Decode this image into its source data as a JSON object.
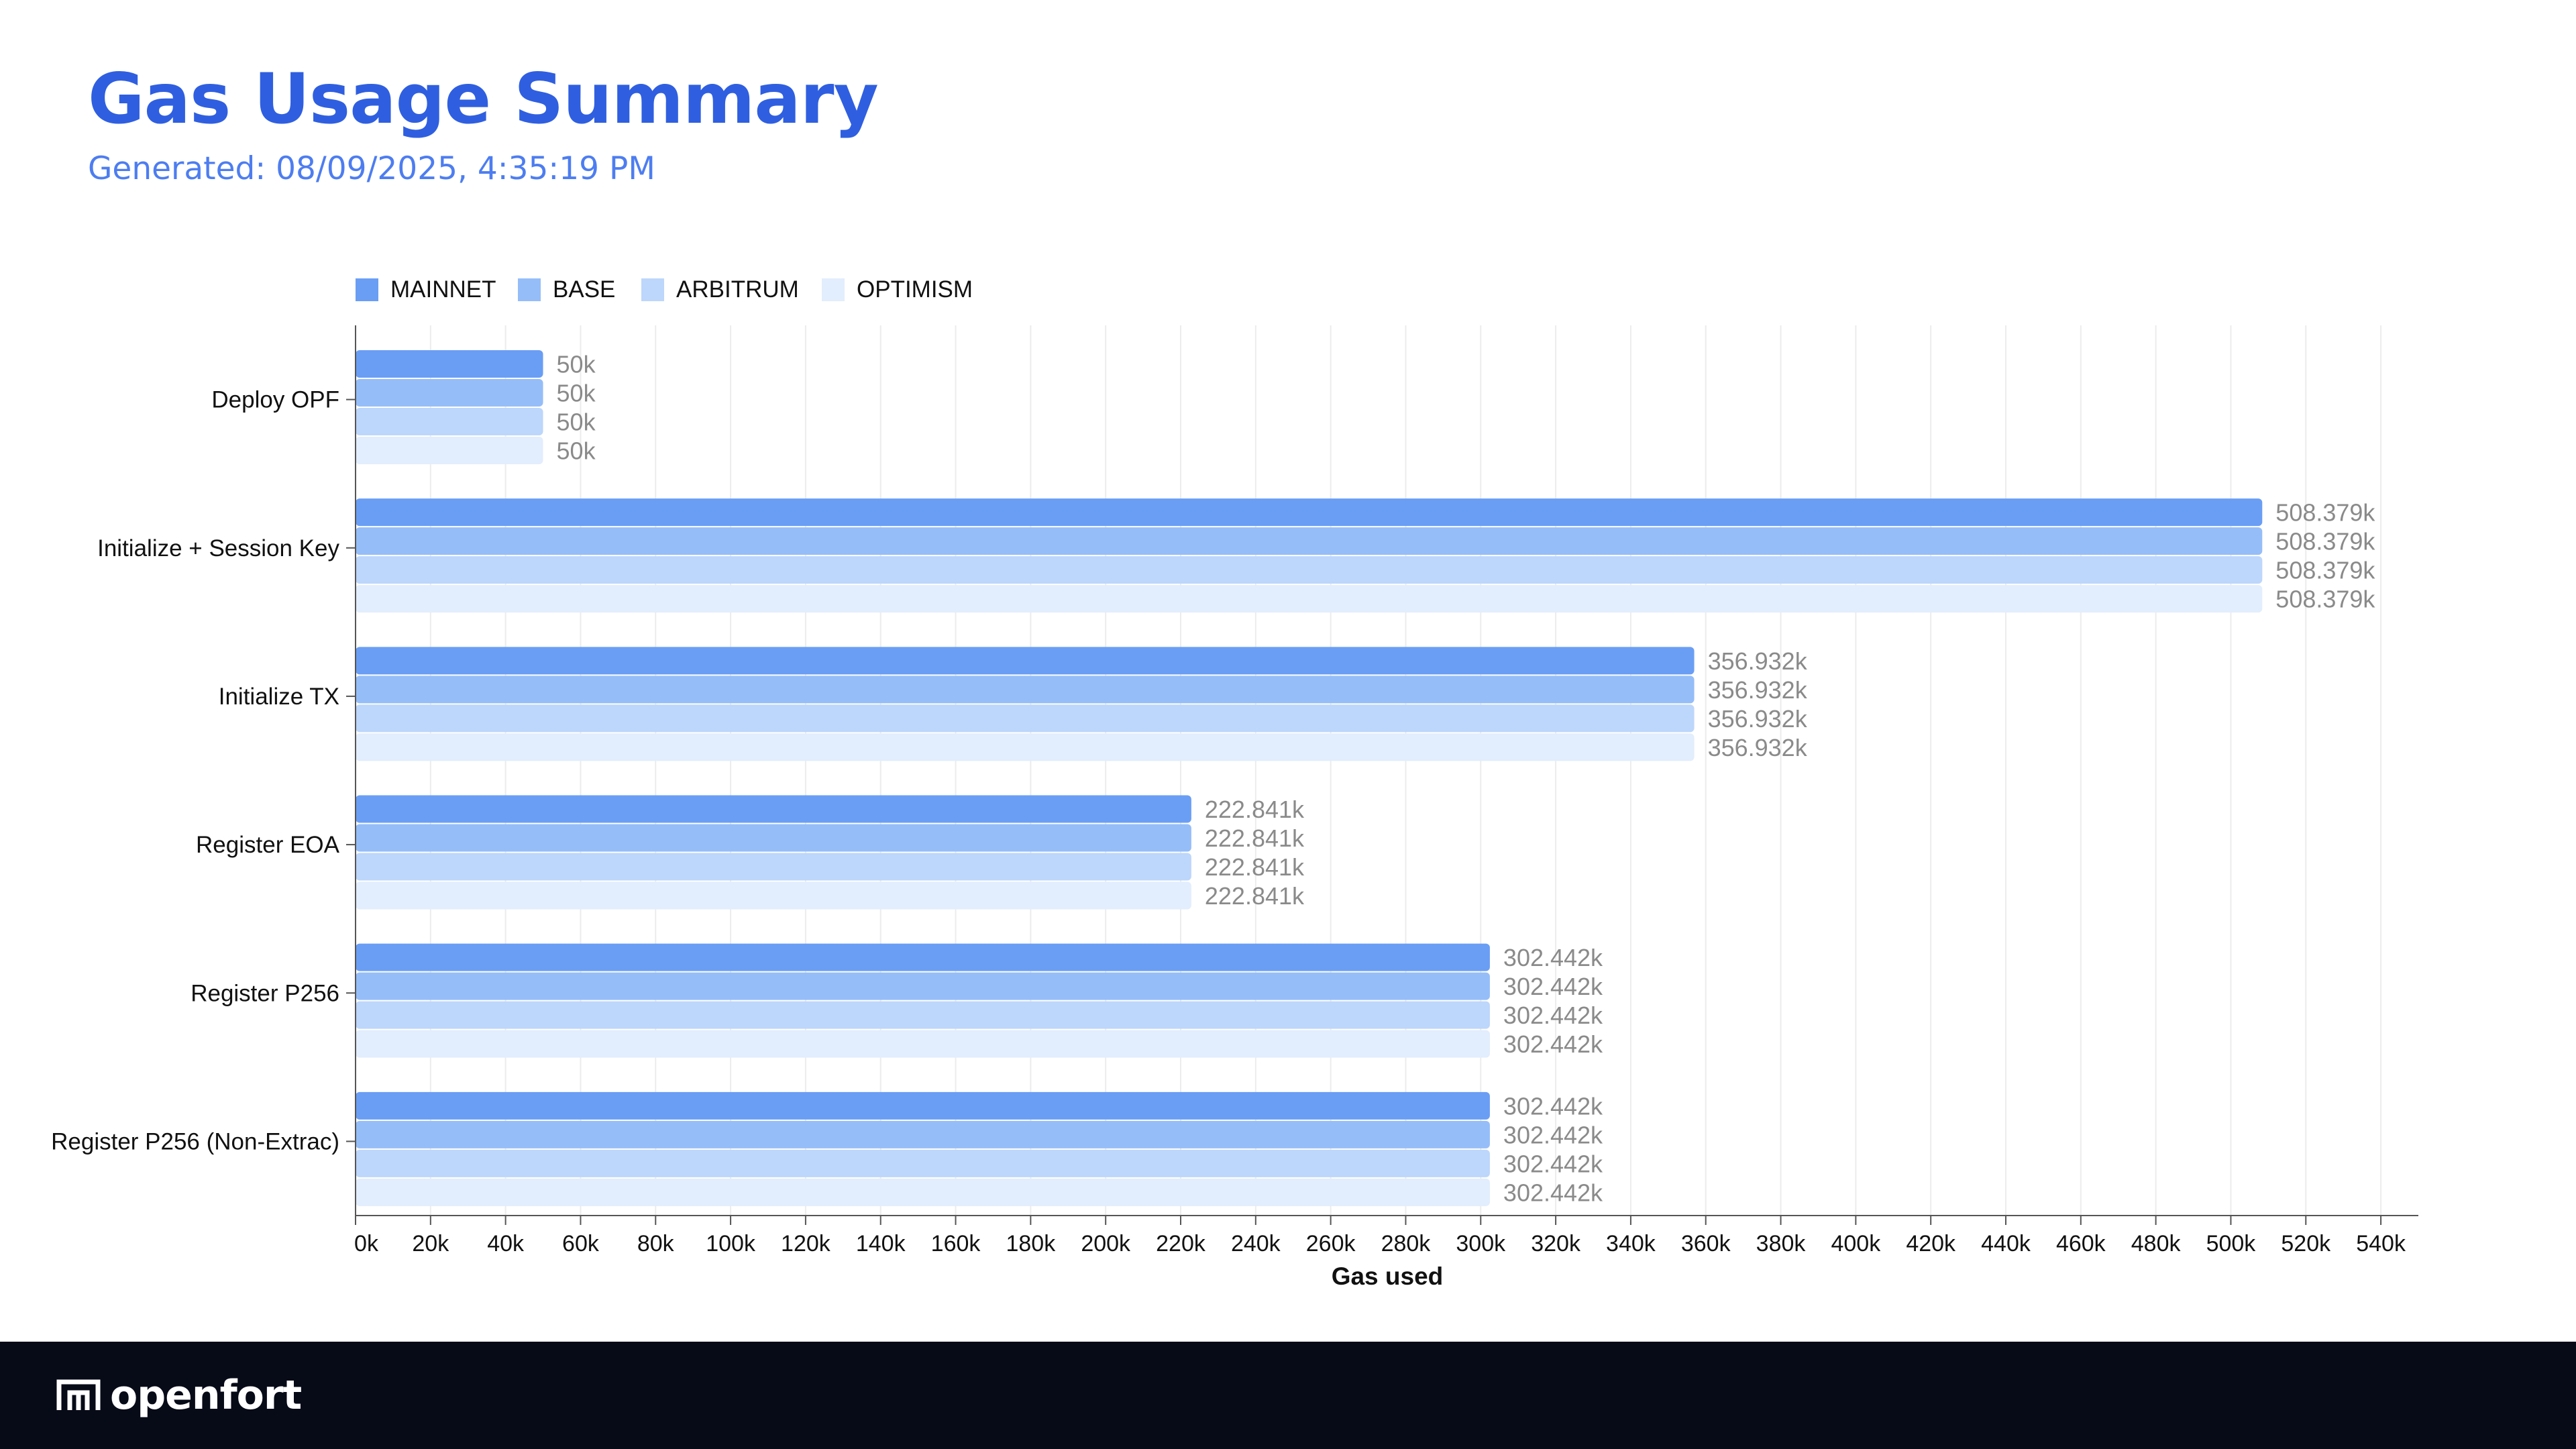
{
  "title": "Gas Usage Summary",
  "subtitle": "Generated: 08/09/2025, 4:35:19 PM",
  "footer": {
    "brand": "openfort"
  },
  "chart_data": {
    "type": "bar",
    "orientation": "horizontal",
    "categories": [
      "Deploy OPF",
      "Initialize + Session Key",
      "Initialize TX",
      "Register EOA",
      "Register P256",
      "Register P256 (Non-Extrac)"
    ],
    "series": [
      {
        "name": "MAINNET",
        "color": "#6a9ef5",
        "values": [
          50000,
          508379,
          356932,
          222841,
          302442,
          302442
        ]
      },
      {
        "name": "BASE",
        "color": "#95bdf8",
        "values": [
          50000,
          508379,
          356932,
          222841,
          302442,
          302442
        ]
      },
      {
        "name": "ARBITRUM",
        "color": "#bdd6fb",
        "values": [
          50000,
          508379,
          356932,
          222841,
          302442,
          302442
        ]
      },
      {
        "name": "OPTIMISM",
        "color": "#e2edfd",
        "values": [
          50000,
          508379,
          356932,
          222841,
          302442,
          302442
        ]
      }
    ],
    "value_labels": [
      [
        "50k",
        "508.379k",
        "356.932k",
        "222.841k",
        "302.442k",
        "302.442k"
      ],
      [
        "50k",
        "508.379k",
        "356.932k",
        "222.841k",
        "302.442k",
        "302.442k"
      ],
      [
        "50k",
        "508.379k",
        "356.932k",
        "222.841k",
        "302.442k",
        "302.442k"
      ],
      [
        "50k",
        "508.379k",
        "356.932k",
        "222.841k",
        "302.442k",
        "302.442k"
      ]
    ],
    "xlabel": "Gas used",
    "xlim": [
      0,
      550000
    ],
    "xticks": [
      0,
      20000,
      40000,
      60000,
      80000,
      100000,
      120000,
      140000,
      160000,
      180000,
      200000,
      220000,
      240000,
      260000,
      280000,
      300000,
      320000,
      340000,
      360000,
      380000,
      400000,
      420000,
      440000,
      460000,
      480000,
      500000,
      520000,
      540000
    ],
    "xtick_labels": [
      "0k",
      "20k",
      "40k",
      "60k",
      "80k",
      "100k",
      "120k",
      "140k",
      "160k",
      "180k",
      "200k",
      "220k",
      "240k",
      "260k",
      "280k",
      "300k",
      "320k",
      "340k",
      "360k",
      "380k",
      "400k",
      "420k",
      "440k",
      "460k",
      "480k",
      "500k",
      "520k",
      "540k"
    ],
    "legend_position": "top-left",
    "grid": "vertical"
  }
}
